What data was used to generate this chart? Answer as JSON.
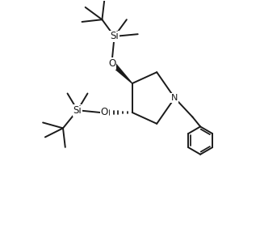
{
  "bg_color": "#ffffff",
  "line_color": "#1a1a1a",
  "line_width": 1.4,
  "fig_width": 3.22,
  "fig_height": 2.78,
  "dpi": 100,
  "xlim": [
    0,
    10
  ],
  "ylim": [
    0,
    10
  ]
}
